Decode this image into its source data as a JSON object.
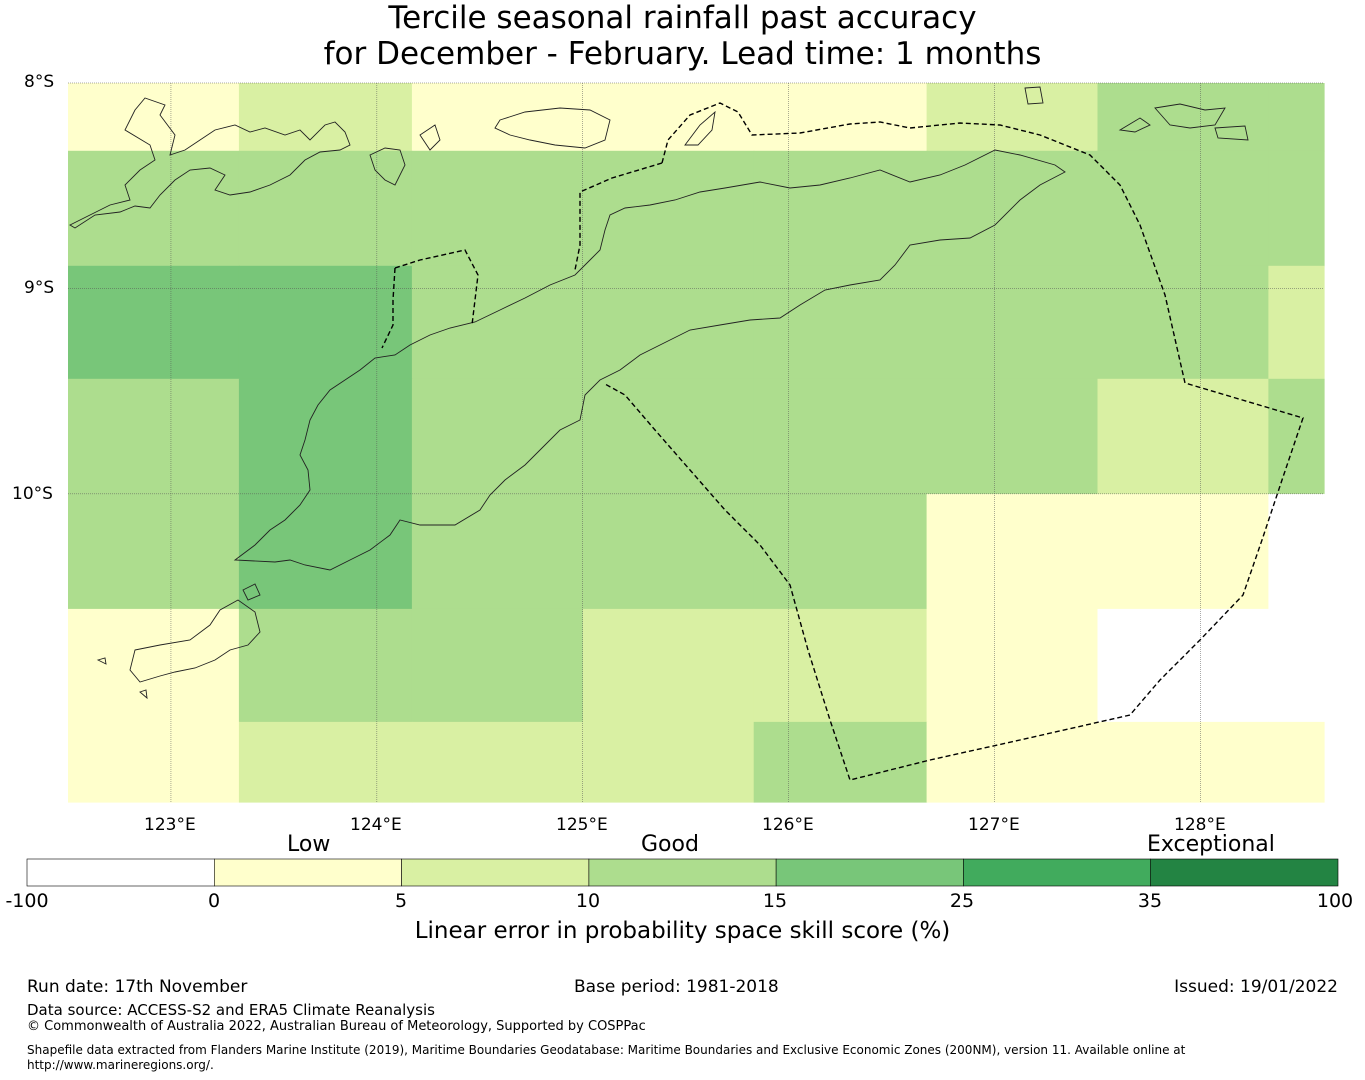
{
  "title": {
    "line1": "Tercile seasonal rainfall past accuracy",
    "line2": "for December - February. Lead time: 1 months"
  },
  "map": {
    "lat_labels": [
      "8°S",
      "9°S",
      "10°S"
    ],
    "lon_labels": [
      "123°E",
      "124°E",
      "125°E",
      "126°E",
      "127°E",
      "128°E"
    ],
    "lon_range": [
      122.5,
      128.6
    ],
    "lat_range": [
      -8.0,
      -11.5
    ],
    "grid_lon": [
      123,
      124,
      125,
      126,
      127,
      128
    ],
    "grid_lat": [
      -8,
      -9,
      -10
    ],
    "cells_lon_edges": [
      122.5,
      123.33,
      124.17,
      125.0,
      125.83,
      126.67,
      127.5,
      128.33,
      128.6
    ],
    "cells_lat_edges": [
      -8.0,
      -8.33,
      -8.89,
      -9.44,
      -10.0,
      -10.56,
      -11.11,
      -11.5
    ],
    "skill_class_grid": [
      [
        1,
        2,
        1,
        1,
        1,
        2,
        3,
        3
      ],
      [
        3,
        3,
        3,
        3,
        3,
        3,
        3,
        3
      ],
      [
        4,
        4,
        3,
        3,
        3,
        3,
        3,
        2
      ],
      [
        3,
        4,
        3,
        3,
        3,
        3,
        2,
        3
      ],
      [
        3,
        4,
        3,
        3,
        3,
        1,
        1,
        0
      ],
      [
        1,
        3,
        3,
        2,
        2,
        1,
        0,
        0
      ],
      [
        1,
        2,
        2,
        2,
        3,
        1,
        1,
        1
      ]
    ]
  },
  "colorbar": {
    "category_labels": [
      "Low",
      "Good",
      "Exceptional"
    ],
    "ticks": [
      "-100",
      "0",
      "5",
      "10",
      "15",
      "25",
      "35",
      "100"
    ],
    "colors": [
      "#ffffff",
      "#ffffcc",
      "#d9f0a3",
      "#addd8e",
      "#78c679",
      "#41ab5d",
      "#238443"
    ],
    "title": "Linear error in probability space skill score (%)"
  },
  "footer": {
    "run_date": "Run date: 17th November",
    "base_period": "Base period: 1981-2018",
    "issued": "Issued: 19/01/2022",
    "data_source": "Data source: ACCESS-S2 and ERA5 Climate Reanalysis",
    "copyright": "© Commonwealth of Australia 2022, Australian Bureau of Meteorology, Supported by COSPPac",
    "shapefile_line1": "Shapefile data extracted from Flanders Marine Institute (2019), Maritime Boundaries Geodatabase: Maritime Boundaries and Exclusive Economic Zones (200NM), version 11. Available online at",
    "shapefile_line2": "http://www.marineregions.org/."
  }
}
